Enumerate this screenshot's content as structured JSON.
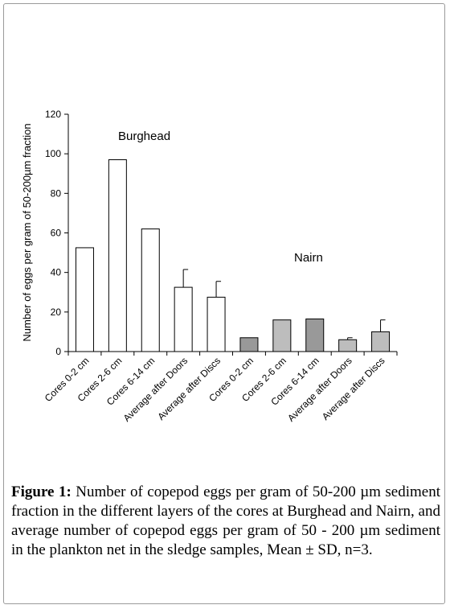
{
  "chart_data": {
    "type": "bar",
    "ylabel": "Number of eggs per gram of 50-200µm fraction",
    "ylim": [
      0,
      120
    ],
    "yticks": [
      0,
      20,
      40,
      60,
      80,
      100,
      120
    ],
    "categories": [
      "Cores 0-2 cm",
      "Cores 2-6 cm",
      "Cores 6-14 cm",
      "Average after Doors",
      "Average after Discs",
      "Cores 0-2 cm",
      "Cores 2-6 cm",
      "Cores 6-14 cm",
      "Average  after Doors",
      "Average  after Discs"
    ],
    "values": [
      52.5,
      97,
      62,
      32.5,
      27.5,
      7,
      16,
      16.5,
      6,
      10
    ],
    "error": [
      null,
      null,
      null,
      9,
      8,
      null,
      null,
      null,
      1,
      6
    ],
    "bar_colors": [
      "#ffffff",
      "#ffffff",
      "#ffffff",
      "#ffffff",
      "#ffffff",
      "#999999",
      "#bdbdbd",
      "#999999",
      "#bdbdbd",
      "#bdbdbd"
    ],
    "annotations": [
      {
        "text": "Burghead",
        "group": "first five bars"
      },
      {
        "text": "Nairn",
        "group": "last five bars"
      }
    ]
  },
  "caption": {
    "label": "Figure 1:",
    "text": " Number of copepod eggs per gram of 50-200 µm sediment fraction in the different layers of the cores at Burghead and Nairn, and average number of copepod eggs per gram of 50 - 200 µm sediment in the plankton net in the sledge samples, Mean ± SD, n=3."
  }
}
